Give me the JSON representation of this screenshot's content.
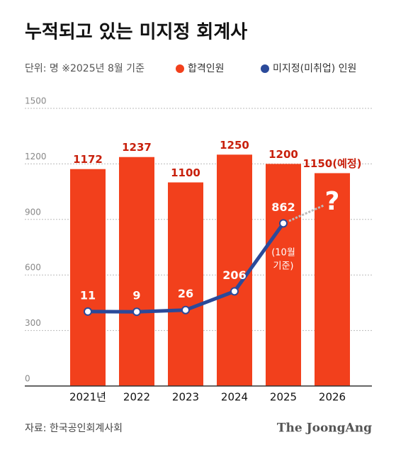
{
  "chart_data": {
    "type": "bar",
    "title": "누적되고 있는 미지정 회계사",
    "subtitle": "단위: 명 ※2025년 8월 기준",
    "categories": [
      "2021년",
      "2022",
      "2023",
      "2024",
      "2025",
      "2026"
    ],
    "series": [
      {
        "name": "합격인원",
        "color": "#f2401c",
        "values": [
          1172,
          1237,
          1100,
          1250,
          1200,
          1150
        ],
        "value_labels": [
          "1172",
          "1237",
          "1100",
          "1250",
          "1200",
          "1150(예정)"
        ]
      },
      {
        "name": "미지정(미취업) 인원",
        "color": "#2b4a9a",
        "type": "line",
        "axis": "y2",
        "values": [
          11,
          9,
          26,
          206,
          862,
          null
        ]
      }
    ],
    "ylim": [
      0,
      1500
    ],
    "yticks": [
      0,
      300,
      600,
      900,
      1200,
      1500
    ],
    "y2lim": [
      -707,
      1971
    ],
    "grid": true,
    "annotations": [
      "(10월",
      "기준)",
      "?"
    ],
    "source": "자료: 한국공인회계사회",
    "brand": "The JoongAng"
  }
}
